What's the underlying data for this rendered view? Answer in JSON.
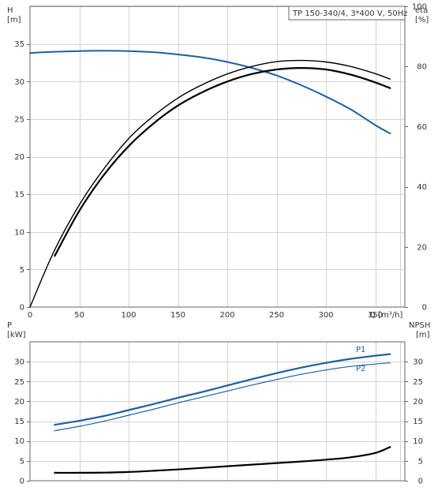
{
  "chart_data": [
    {
      "type": "line",
      "panel": "head-efficiency",
      "title": "TP 150-340/4, 3*400 V, 50Hz",
      "xlabel": "Q [m³/h]",
      "ylabel_left": [
        "H",
        "[m]"
      ],
      "ylabel_right": [
        "eta",
        "[%]"
      ],
      "xlim": [
        0,
        380
      ],
      "xticks": [
        0,
        50,
        100,
        150,
        200,
        250,
        300,
        350
      ],
      "ylim_left": [
        0,
        40
      ],
      "yticks_left": [
        0,
        5,
        10,
        15,
        20,
        25,
        30,
        35
      ],
      "ylim_right": [
        0,
        100
      ],
      "yticks_right": [
        0,
        20,
        40,
        60,
        80,
        100
      ],
      "grid": true,
      "series": [
        {
          "axis": "left",
          "color": "#1f5fa0",
          "width": 2,
          "x": [
            0,
            25,
            50,
            75,
            100,
            125,
            150,
            175,
            200,
            225,
            250,
            275,
            300,
            325,
            350,
            365
          ],
          "y": [
            33.8,
            33.95,
            34.05,
            34.1,
            34.05,
            33.9,
            33.6,
            33.2,
            32.6,
            31.8,
            30.8,
            29.5,
            28.0,
            26.3,
            24.2,
            23.1
          ]
        },
        {
          "axis": "right",
          "color": "#000000",
          "width": 1.4,
          "x": [
            0,
            25,
            50,
            75,
            100,
            125,
            150,
            175,
            200,
            225,
            250,
            275,
            300,
            325,
            350,
            365
          ],
          "y": [
            0,
            19,
            34,
            46,
            56,
            63.5,
            69.5,
            74,
            77.5,
            80,
            81.6,
            82,
            81.5,
            80,
            77.6,
            75.8
          ]
        },
        {
          "axis": "right",
          "color": "#000000",
          "width": 2.2,
          "x": [
            25,
            50,
            75,
            100,
            125,
            150,
            175,
            200,
            225,
            250,
            275,
            300,
            325,
            350,
            365
          ],
          "y": [
            17,
            32,
            44,
            53.5,
            61,
            67,
            71.5,
            75,
            77.5,
            79,
            79.5,
            79,
            77.3,
            74.7,
            72.8
          ]
        }
      ]
    },
    {
      "type": "line",
      "panel": "power-npsh",
      "ylabel_left": [
        "P",
        "[kW]"
      ],
      "ylabel_right": [
        "NPSH",
        "[m]"
      ],
      "xlim": [
        0,
        380
      ],
      "ylim_left": [
        0,
        35
      ],
      "yticks_left": [
        0,
        5,
        10,
        15,
        20,
        25,
        30
      ],
      "ylim_right": [
        0,
        35
      ],
      "yticks_right": [
        0,
        5,
        10,
        15,
        20,
        25,
        30
      ],
      "grid": true,
      "series": [
        {
          "name": "P1",
          "axis": "left",
          "color": "#1f5fa0",
          "width": 2.2,
          "x": [
            25,
            50,
            75,
            100,
            125,
            150,
            175,
            200,
            225,
            250,
            275,
            300,
            325,
            350,
            365
          ],
          "y": [
            14.1,
            15.1,
            16.3,
            17.8,
            19.3,
            20.9,
            22.4,
            24.0,
            25.6,
            27.1,
            28.5,
            29.7,
            30.7,
            31.5,
            31.9
          ]
        },
        {
          "name": "P2",
          "axis": "left",
          "color": "#1f5fa0",
          "width": 1.2,
          "x": [
            25,
            50,
            75,
            100,
            125,
            150,
            175,
            200,
            225,
            250,
            275,
            300,
            325,
            350,
            365
          ],
          "y": [
            12.6,
            13.7,
            15.0,
            16.5,
            18.0,
            19.6,
            21.1,
            22.6,
            24.1,
            25.5,
            26.8,
            27.9,
            28.8,
            29.4,
            29.7
          ]
        },
        {
          "axis": "right",
          "color": "#000000",
          "width": 2.2,
          "x": [
            25,
            50,
            75,
            100,
            125,
            150,
            175,
            200,
            225,
            250,
            275,
            300,
            325,
            350,
            365
          ],
          "y": [
            2.0,
            2.0,
            2.05,
            2.2,
            2.5,
            2.85,
            3.25,
            3.65,
            4.05,
            4.45,
            4.85,
            5.3,
            5.9,
            7.0,
            8.5
          ]
        }
      ]
    }
  ]
}
